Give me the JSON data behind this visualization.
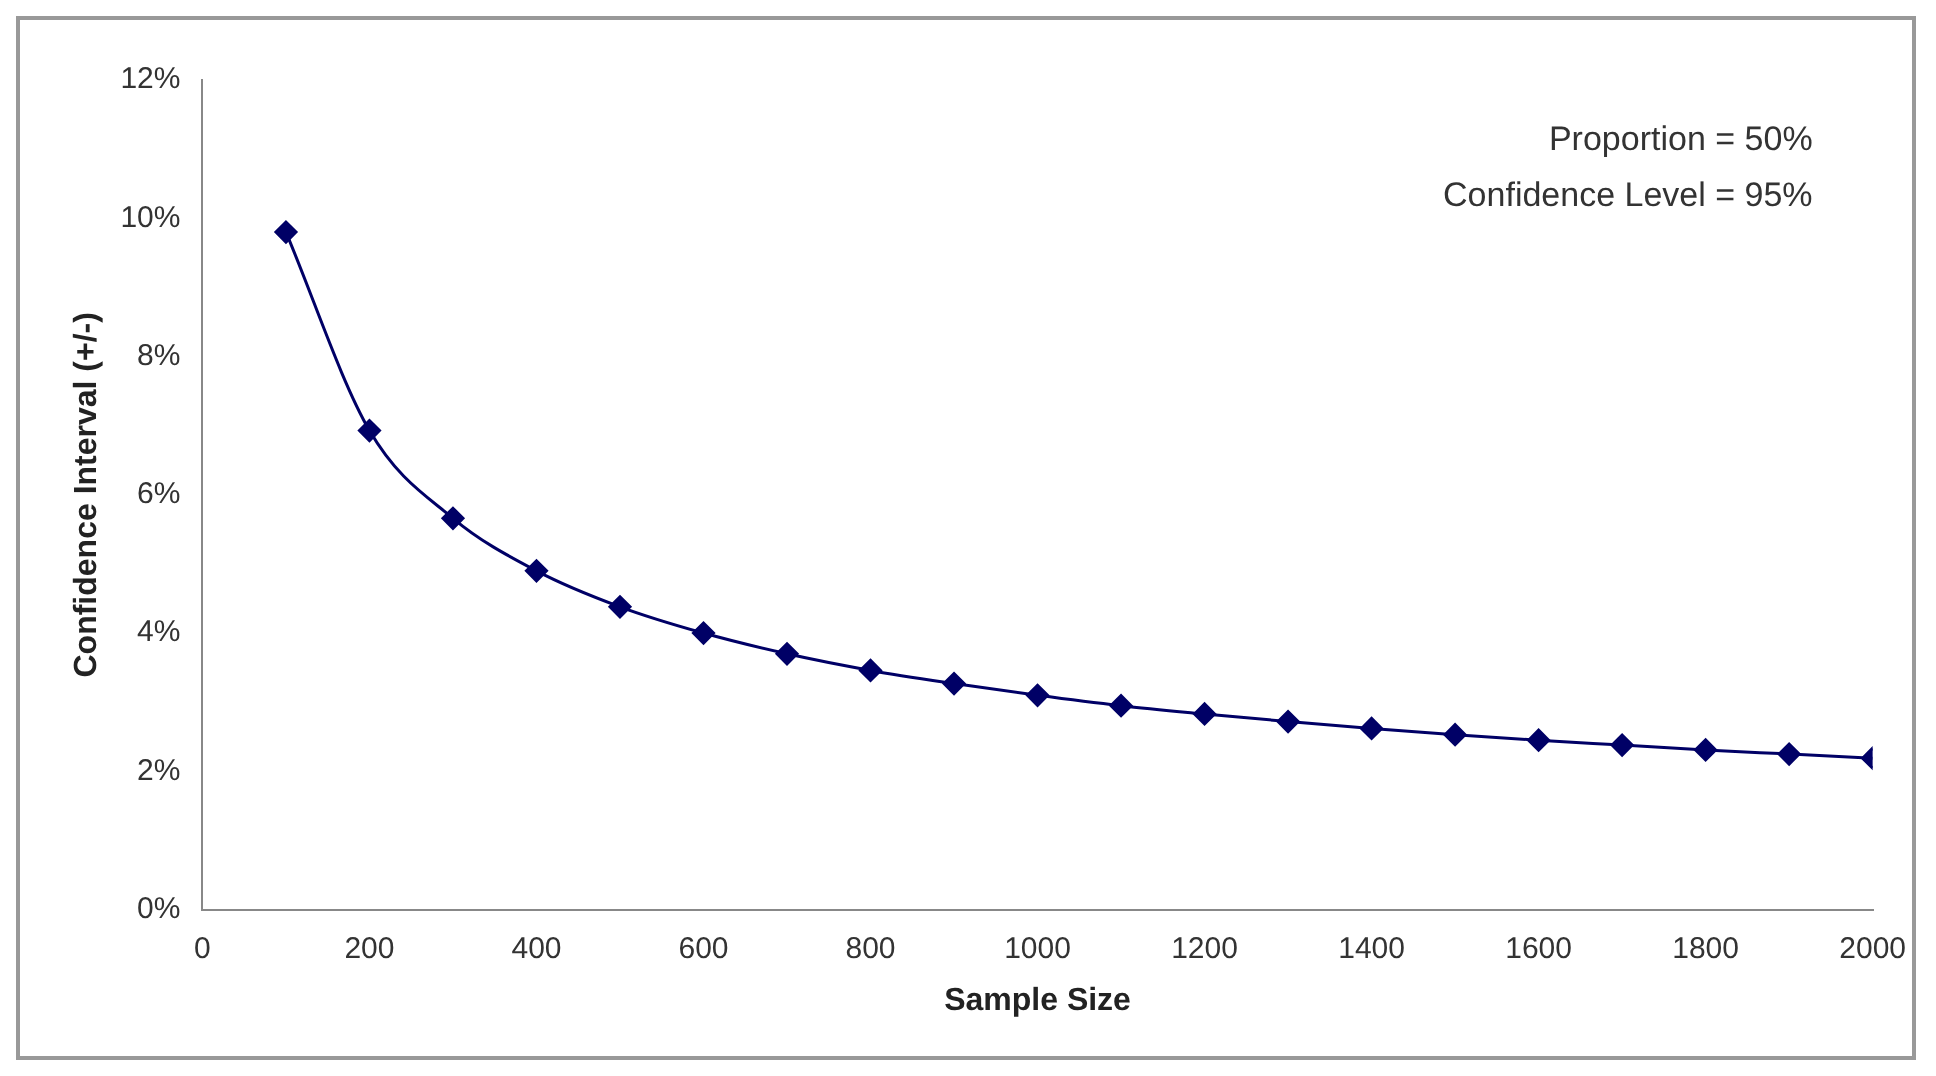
{
  "chart_data": {
    "type": "line",
    "xlabel": "Sample Size",
    "ylabel": "Confidence Interval (+/-)",
    "x": [
      100,
      200,
      300,
      400,
      500,
      600,
      700,
      800,
      900,
      1000,
      1100,
      1200,
      1300,
      1400,
      1500,
      1600,
      1700,
      1800,
      1900,
      2000
    ],
    "series": [
      {
        "color": "#000066",
        "values": [
          9.8,
          6.93,
          5.66,
          4.9,
          4.38,
          4.0,
          3.7,
          3.46,
          3.27,
          3.1,
          2.95,
          2.83,
          2.72,
          2.62,
          2.53,
          2.45,
          2.38,
          2.31,
          2.25,
          2.19
        ]
      }
    ],
    "xlim": [
      0,
      2000
    ],
    "xticks": [
      0,
      200,
      400,
      600,
      800,
      1000,
      1200,
      1400,
      1600,
      1800,
      2000
    ],
    "ylim": [
      0,
      12
    ],
    "yticks": [
      {
        "value": 0,
        "label": "0%"
      },
      {
        "value": 2,
        "label": "2%"
      },
      {
        "value": 4,
        "label": "4%"
      },
      {
        "value": 6,
        "label": "6%"
      },
      {
        "value": 8,
        "label": "8%"
      },
      {
        "value": 10,
        "label": "10%"
      },
      {
        "value": 12,
        "label": "12%"
      }
    ],
    "annotations": [
      "Proportion = 50%",
      "Confidence Level = 95%"
    ],
    "grid": false,
    "legend": false,
    "marker": "diamond",
    "line_style": "solid"
  }
}
